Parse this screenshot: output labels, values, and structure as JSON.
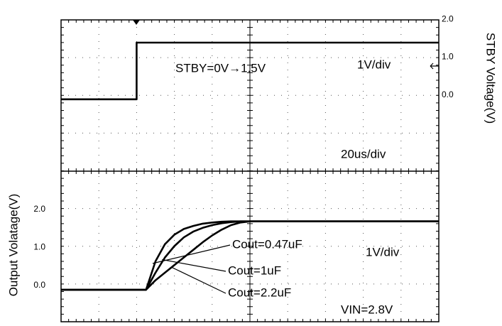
{
  "chart_data": [
    {
      "type": "line",
      "y_label": "STBY Voltage(V)",
      "x": [
        0,
        40,
        40,
        200
      ],
      "series": [
        {
          "name": "STBY",
          "color": "#000000",
          "values": [
            0,
            0,
            1.5,
            1.5
          ]
        }
      ],
      "xlim": [
        0,
        200
      ],
      "ylim": [
        -1.9,
        2.1
      ],
      "yticks": [
        {
          "value": 0,
          "label": "0.0"
        },
        {
          "value": 1,
          "label": "1.0"
        },
        {
          "value": 2,
          "label": "2.0"
        }
      ],
      "annotations": [
        "STBY=0V→1.5V",
        "1V/div",
        "20us/div"
      ],
      "grid": true
    },
    {
      "type": "line",
      "y_label": "Output Volatage(V)",
      "x": [
        0,
        45,
        50,
        55,
        60,
        65,
        70,
        75,
        80,
        85,
        90,
        95,
        100,
        200
      ],
      "series": [
        {
          "name": "Cout=0.47uF",
          "color": "#000000",
          "values": [
            0,
            0,
            0.75,
            1.2,
            1.45,
            1.6,
            1.68,
            1.74,
            1.77,
            1.79,
            1.8,
            1.8,
            1.8,
            1.8
          ]
        },
        {
          "name": "Cout=1uF",
          "color": "#000000",
          "values": [
            0,
            0,
            0.45,
            0.85,
            1.15,
            1.38,
            1.53,
            1.63,
            1.7,
            1.75,
            1.78,
            1.8,
            1.8,
            1.8
          ]
        },
        {
          "name": "Cout=2.2uF",
          "color": "#000000",
          "values": [
            0,
            0,
            0.25,
            0.45,
            0.65,
            0.85,
            1.05,
            1.25,
            1.43,
            1.58,
            1.7,
            1.77,
            1.8,
            1.8
          ]
        }
      ],
      "xlim": [
        0,
        200
      ],
      "ylim": [
        -0.84,
        3.12
      ],
      "yticks": [
        {
          "value": 0,
          "label": "0.0"
        },
        {
          "value": 1,
          "label": "1.0"
        },
        {
          "value": 2,
          "label": "2.0"
        }
      ],
      "annotations": [
        "1V/div",
        "VIN=2.8V"
      ],
      "grid": true
    }
  ]
}
